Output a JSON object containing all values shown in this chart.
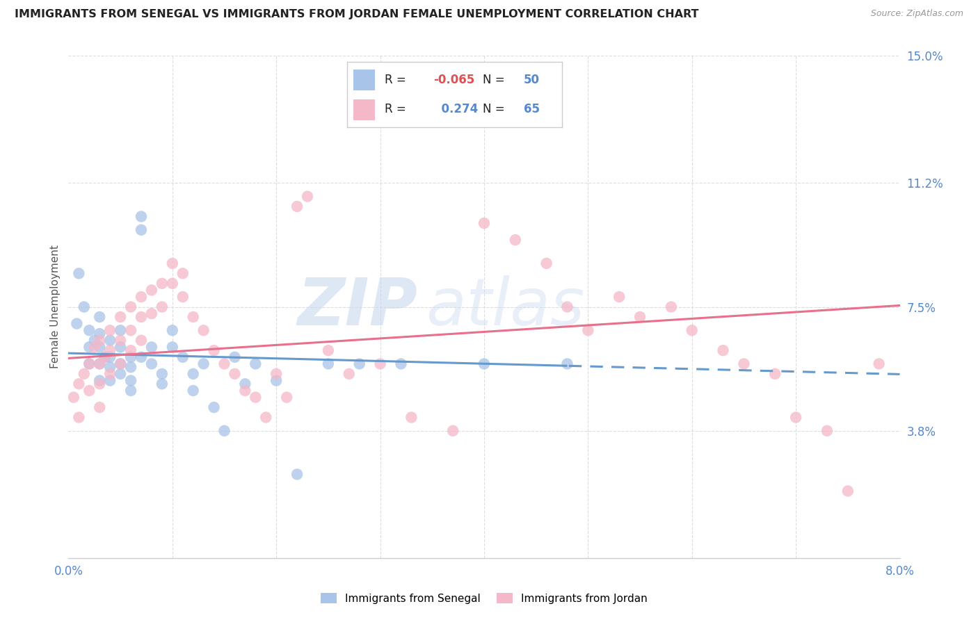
{
  "title": "IMMIGRANTS FROM SENEGAL VS IMMIGRANTS FROM JORDAN FEMALE UNEMPLOYMENT CORRELATION CHART",
  "source": "Source: ZipAtlas.com",
  "ylabel": "Female Unemployment",
  "xlim": [
    0.0,
    0.08
  ],
  "ylim": [
    0.0,
    0.15
  ],
  "senegal_color": "#a8c4e8",
  "jordan_color": "#f5b8c8",
  "senegal_line_color": "#6699cc",
  "jordan_line_color": "#e8708a",
  "R_senegal": -0.065,
  "N_senegal": 50,
  "R_jordan": 0.274,
  "N_jordan": 65,
  "legend_label_senegal": "Immigrants from Senegal",
  "legend_label_jordan": "Immigrants from Jordan",
  "watermark_zip": "ZIP",
  "watermark_atlas": "atlas",
  "senegal_x": [
    0.0008,
    0.001,
    0.0015,
    0.002,
    0.002,
    0.002,
    0.0025,
    0.003,
    0.003,
    0.003,
    0.003,
    0.003,
    0.0035,
    0.004,
    0.004,
    0.004,
    0.004,
    0.005,
    0.005,
    0.005,
    0.005,
    0.006,
    0.006,
    0.006,
    0.006,
    0.007,
    0.007,
    0.007,
    0.008,
    0.008,
    0.009,
    0.009,
    0.01,
    0.01,
    0.011,
    0.012,
    0.012,
    0.013,
    0.014,
    0.015,
    0.016,
    0.017,
    0.018,
    0.02,
    0.022,
    0.025,
    0.028,
    0.032,
    0.04,
    0.048
  ],
  "senegal_y": [
    0.07,
    0.085,
    0.075,
    0.068,
    0.063,
    0.058,
    0.065,
    0.072,
    0.067,
    0.063,
    0.058,
    0.053,
    0.06,
    0.065,
    0.06,
    0.057,
    0.053,
    0.068,
    0.063,
    0.058,
    0.055,
    0.06,
    0.057,
    0.053,
    0.05,
    0.102,
    0.098,
    0.06,
    0.063,
    0.058,
    0.055,
    0.052,
    0.068,
    0.063,
    0.06,
    0.055,
    0.05,
    0.058,
    0.045,
    0.038,
    0.06,
    0.052,
    0.058,
    0.053,
    0.025,
    0.058,
    0.058,
    0.058,
    0.058,
    0.058
  ],
  "jordan_x": [
    0.0005,
    0.001,
    0.001,
    0.0015,
    0.002,
    0.002,
    0.0025,
    0.003,
    0.003,
    0.003,
    0.003,
    0.0035,
    0.004,
    0.004,
    0.004,
    0.005,
    0.005,
    0.005,
    0.006,
    0.006,
    0.006,
    0.007,
    0.007,
    0.007,
    0.008,
    0.008,
    0.009,
    0.009,
    0.01,
    0.01,
    0.011,
    0.011,
    0.012,
    0.013,
    0.014,
    0.015,
    0.016,
    0.017,
    0.018,
    0.019,
    0.02,
    0.021,
    0.022,
    0.023,
    0.025,
    0.027,
    0.03,
    0.033,
    0.037,
    0.04,
    0.043,
    0.046,
    0.048,
    0.05,
    0.053,
    0.055,
    0.058,
    0.06,
    0.063,
    0.065,
    0.068,
    0.07,
    0.073,
    0.075,
    0.078
  ],
  "jordan_y": [
    0.048,
    0.052,
    0.042,
    0.055,
    0.058,
    0.05,
    0.063,
    0.065,
    0.058,
    0.052,
    0.045,
    0.06,
    0.068,
    0.062,
    0.055,
    0.072,
    0.065,
    0.058,
    0.075,
    0.068,
    0.062,
    0.078,
    0.072,
    0.065,
    0.08,
    0.073,
    0.082,
    0.075,
    0.088,
    0.082,
    0.085,
    0.078,
    0.072,
    0.068,
    0.062,
    0.058,
    0.055,
    0.05,
    0.048,
    0.042,
    0.055,
    0.048,
    0.105,
    0.108,
    0.062,
    0.055,
    0.058,
    0.042,
    0.038,
    0.1,
    0.095,
    0.088,
    0.075,
    0.068,
    0.078,
    0.072,
    0.075,
    0.068,
    0.062,
    0.058,
    0.055,
    0.042,
    0.038,
    0.02,
    0.058
  ],
  "grid_color": "#dddddd",
  "spine_color": "#cccccc",
  "tick_color": "#5588cc"
}
